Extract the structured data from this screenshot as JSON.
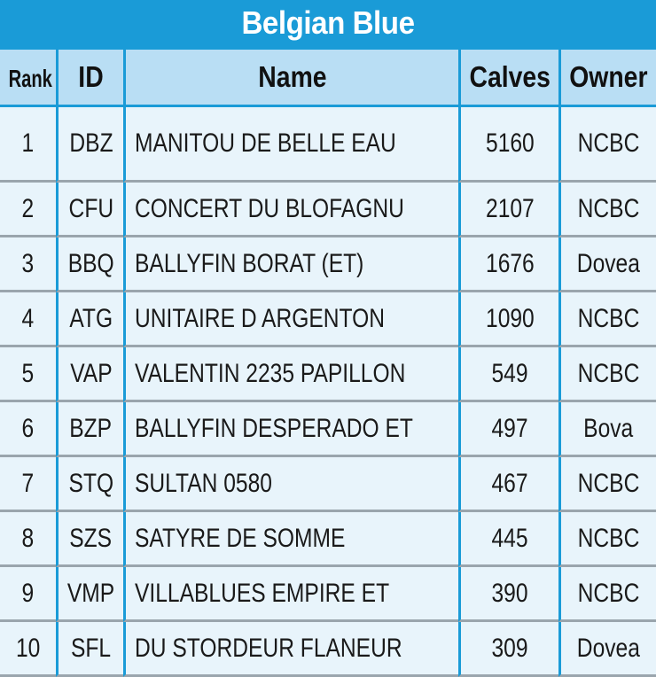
{
  "title": "Belgian Blue",
  "headers": {
    "rank": "Rank",
    "id": "ID",
    "name": "Name",
    "calves": "Calves",
    "owner": "Owner"
  },
  "rows": [
    {
      "rank": "1",
      "id": "DBZ",
      "name": "MANITOU DE BELLE EAU",
      "calves": "5160",
      "owner": "NCBC"
    },
    {
      "rank": "2",
      "id": "CFU",
      "name": "CONCERT DU BLOFAGNU",
      "calves": "2107",
      "owner": "NCBC"
    },
    {
      "rank": "3",
      "id": "BBQ",
      "name": "BALLYFIN BORAT (ET)",
      "calves": "1676",
      "owner": "Dovea"
    },
    {
      "rank": "4",
      "id": "ATG",
      "name": "UNITAIRE D ARGENTON",
      "calves": "1090",
      "owner": "NCBC"
    },
    {
      "rank": "5",
      "id": "VAP",
      "name": "VALENTIN 2235 PAPILLON",
      "calves": "549",
      "owner": "NCBC"
    },
    {
      "rank": "6",
      "id": "BZP",
      "name": "BALLYFIN DESPERADO ET",
      "calves": "497",
      "owner": "Bova"
    },
    {
      "rank": "7",
      "id": "STQ",
      "name": "SULTAN 0580",
      "calves": "467",
      "owner": "NCBC"
    },
    {
      "rank": "8",
      "id": "SZS",
      "name": "SATYRE DE SOMME",
      "calves": "445",
      "owner": "NCBC"
    },
    {
      "rank": "9",
      "id": "VMP",
      "name": "VILLABLUES EMPIRE ET",
      "calves": "390",
      "owner": "NCBC"
    },
    {
      "rank": "10",
      "id": "SFL",
      "name": "DU STORDEUR FLANEUR",
      "calves": "309",
      "owner": "Dovea"
    }
  ],
  "colors": {
    "frame": "#1a9bd7",
    "header_fill": "#b9def4",
    "cell_fill": "#e8f4fb",
    "row_divider": "#9aa5ad"
  }
}
